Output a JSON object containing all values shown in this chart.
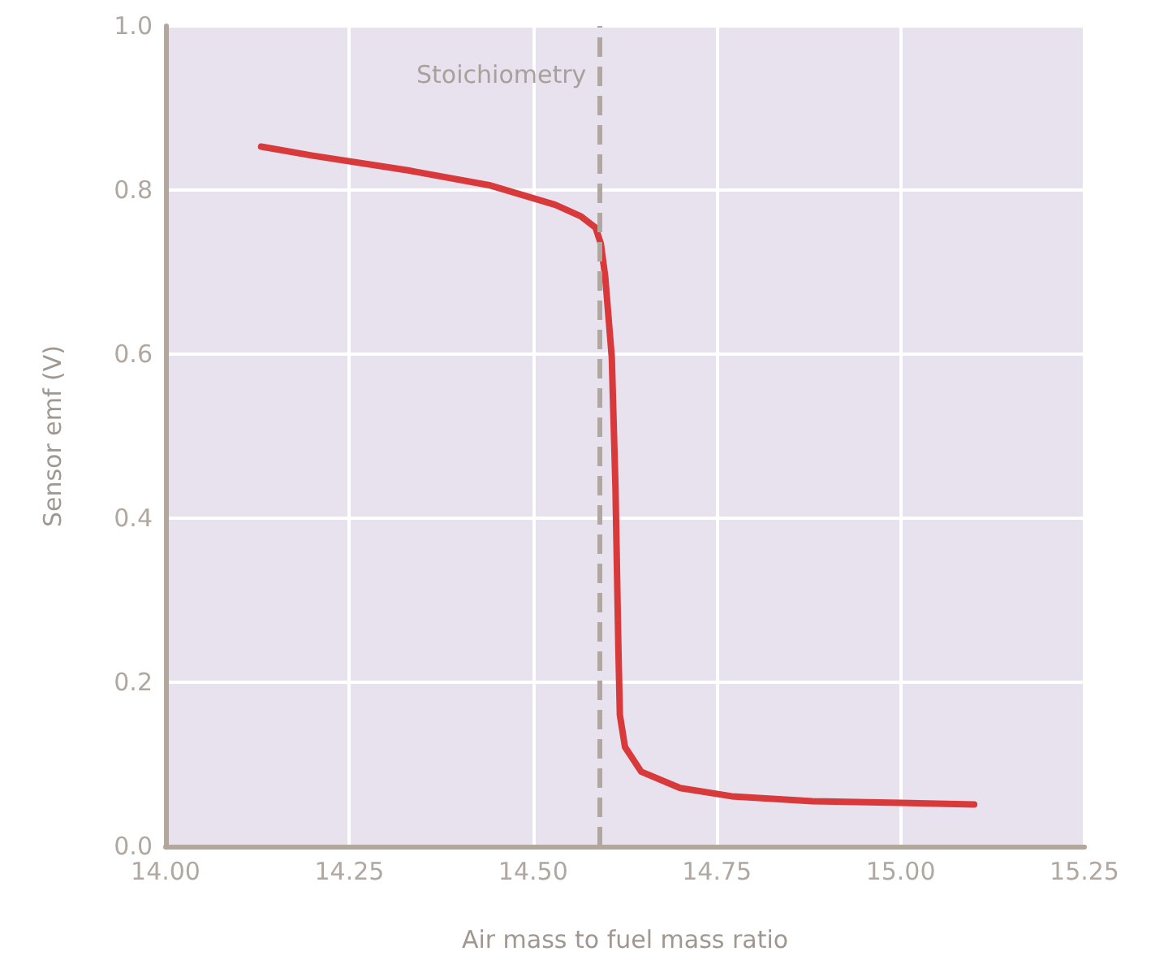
{
  "chart_data": {
    "type": "line",
    "xlabel": "Air mass to fuel mass ratio",
    "ylabel": "Sensor emf (V)",
    "x": [
      14.13,
      14.2,
      14.33,
      14.44,
      14.53,
      14.565,
      14.585,
      14.592,
      14.598,
      14.607,
      14.612,
      14.616,
      14.618,
      14.625,
      14.647,
      14.7,
      14.77,
      14.88,
      15.0,
      15.1
    ],
    "series": [
      {
        "color": "#d8393a",
        "values": [
          0.853,
          0.842,
          0.824,
          0.806,
          0.782,
          0.768,
          0.754,
          0.735,
          0.695,
          0.596,
          0.438,
          0.24,
          0.16,
          0.121,
          0.091,
          0.071,
          0.061,
          0.055,
          0.053,
          0.051
        ]
      }
    ],
    "xlim": [
      14,
      15.25
    ],
    "ylim": [
      0,
      1
    ],
    "xticks": [
      {
        "value": 14,
        "label": "14.00"
      },
      {
        "value": 14.25,
        "label": "14.25"
      },
      {
        "value": 14.5,
        "label": "14.50"
      },
      {
        "value": 14.75,
        "label": "14.75"
      },
      {
        "value": 15,
        "label": "15.00"
      },
      {
        "value": 15.25,
        "label": "15.25"
      }
    ],
    "yticks": [
      {
        "value": 0,
        "label": "0.0"
      },
      {
        "value": 0.2,
        "label": "0.2"
      },
      {
        "value": 0.4,
        "label": "0.4"
      },
      {
        "value": 0.6,
        "label": "0.6"
      },
      {
        "value": 0.8,
        "label": "0.8"
      },
      {
        "value": 1,
        "label": "1.0"
      }
    ],
    "ref_lines": [
      {
        "axis": "x",
        "value": 14.59,
        "label": "Stoichiometry",
        "color": "#b0a8a0",
        "line_style": "dashed"
      }
    ],
    "grid": true,
    "marker": "none",
    "line_style": "solid"
  }
}
